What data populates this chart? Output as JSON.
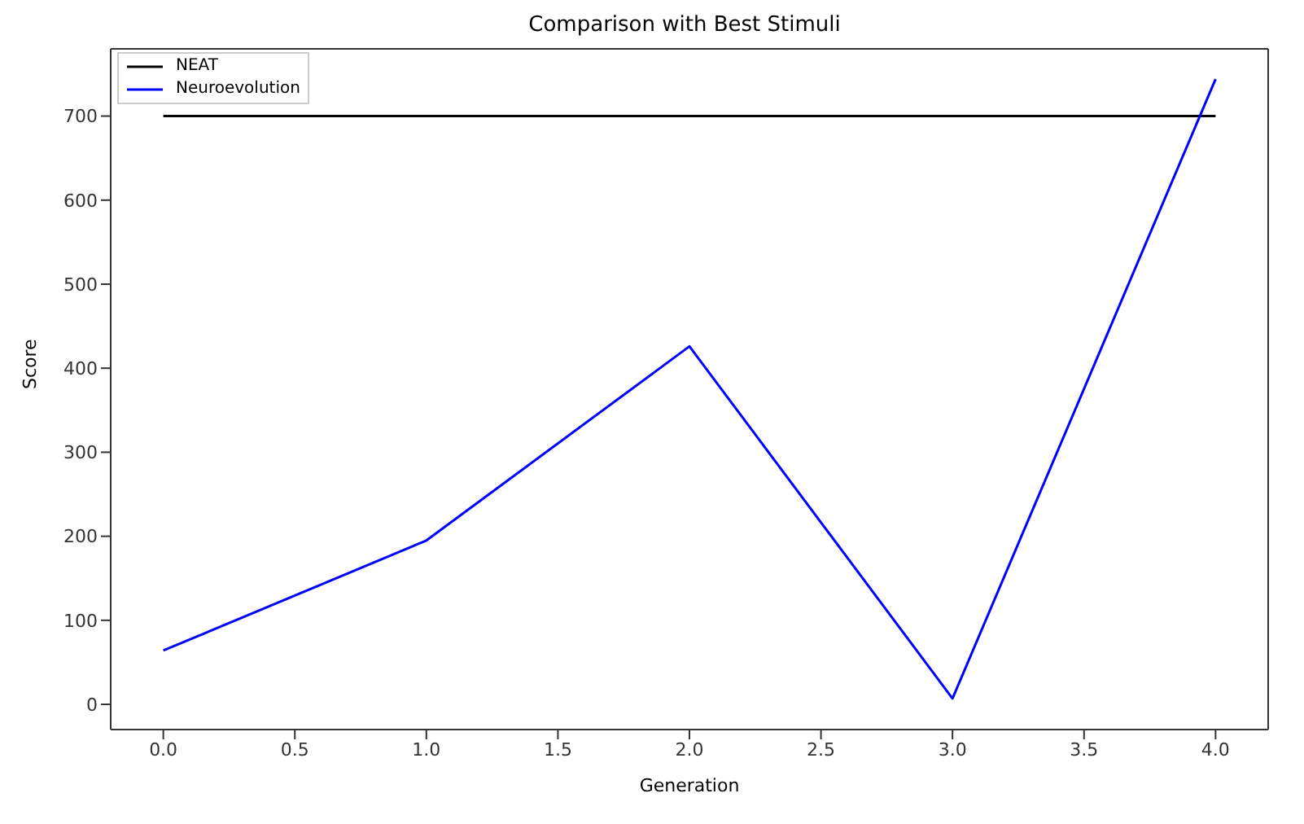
{
  "chart_data": {
    "type": "line",
    "title": "Comparison with Best Stimuli",
    "xlabel": "Generation",
    "ylabel": "Score",
    "x": [
      0,
      1,
      2,
      3,
      4
    ],
    "series": [
      {
        "name": "NEAT",
        "color": "#000000",
        "values": [
          700,
          700,
          700,
          700,
          700
        ]
      },
      {
        "name": "Neuroevolution",
        "color": "#0000ff",
        "values": [
          64,
          195,
          426,
          7,
          744
        ]
      }
    ],
    "xlim": [
      -0.2,
      4.2
    ],
    "xticks": [
      {
        "value": 0,
        "label": "0.0"
      },
      {
        "value": 0.5,
        "label": "0.5"
      },
      {
        "value": 1,
        "label": "1.0"
      },
      {
        "value": 1.5,
        "label": "1.5"
      },
      {
        "value": 2,
        "label": "2.0"
      },
      {
        "value": 2.5,
        "label": "2.5"
      },
      {
        "value": 3,
        "label": "3.0"
      },
      {
        "value": 3.5,
        "label": "3.5"
      },
      {
        "value": 4,
        "label": "4.0"
      }
    ],
    "ylim": [
      -30,
      780
    ],
    "yticks": [
      0,
      100,
      200,
      300,
      400,
      500,
      600,
      700
    ],
    "grid": false,
    "legend": "top left",
    "marker": "none",
    "line_style": "solid"
  }
}
